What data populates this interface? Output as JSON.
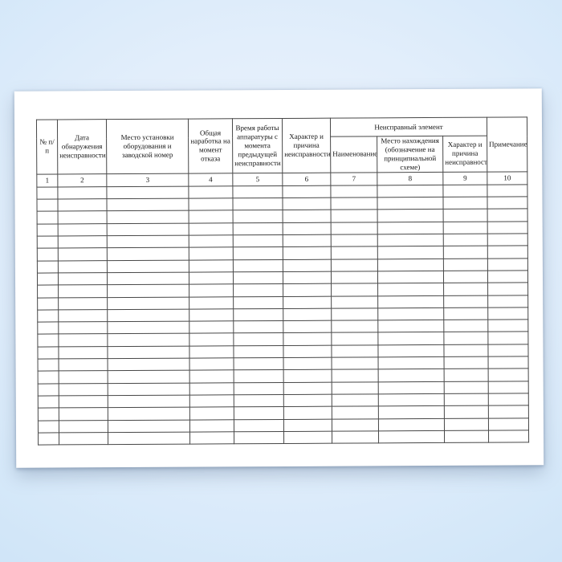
{
  "table": {
    "headers": {
      "col1": "№ п/п",
      "col2": "Дата обнаружения неисправности",
      "col3": "Место установки оборудования и заводской номер",
      "col4": "Общая наработка на момент отказа",
      "col5": "Время работы аппаратуры с момента предыдущей неисправности",
      "col6": "Характер и причина неисправности",
      "group7_9": "Неисправный элемент",
      "col7": "Наименование",
      "col8": "Место нахождения (обозначение на принципиальной схеме)",
      "col9": "Характер и причина неисправности",
      "col10": "Примечание"
    },
    "column_numbers": [
      "1",
      "2",
      "3",
      "4",
      "5",
      "6",
      "7",
      "8",
      "9",
      "10"
    ],
    "empty_row_count": 21
  },
  "colors": {
    "background_outer": "#cde3f7",
    "background_inner": "#eef5fd",
    "paper": "#ffffff",
    "grid_line": "#474747"
  }
}
